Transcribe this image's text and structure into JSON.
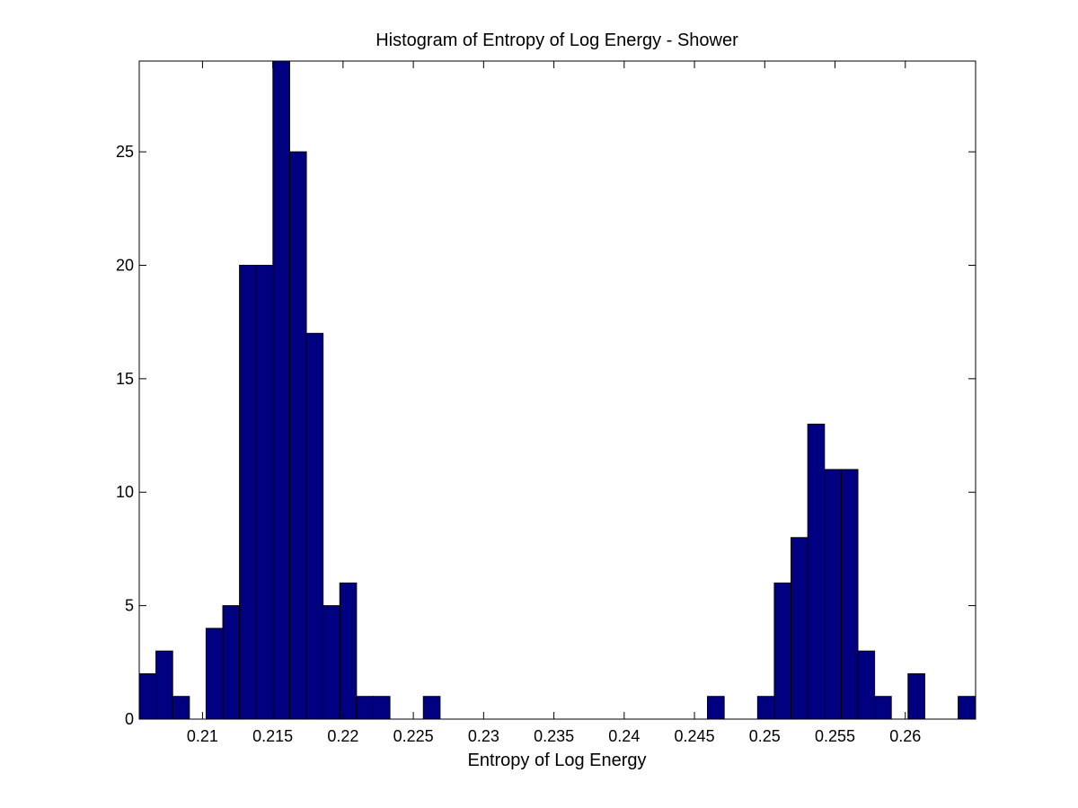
{
  "chart_data": {
    "type": "bar",
    "title": "Histogram of Entropy of Log Energy - Shower",
    "xlabel": "Entropy of Log Energy",
    "ylabel": "",
    "xlim": [
      0.2055,
      0.265
    ],
    "ylim": [
      0,
      29
    ],
    "bin_width": 0.001189,
    "bin_start": 0.2055,
    "values": [
      2,
      3,
      1,
      0,
      4,
      5,
      20,
      20,
      29,
      25,
      17,
      5,
      6,
      1,
      1,
      0,
      0,
      1,
      0,
      0,
      0,
      0,
      0,
      0,
      0,
      0,
      0,
      0,
      0,
      0,
      0,
      0,
      0,
      0,
      1,
      0,
      0,
      1,
      6,
      8,
      13,
      11,
      11,
      3,
      1,
      0,
      2,
      0,
      0,
      1
    ],
    "x_ticks": [
      "0.21",
      "0.215",
      "0.22",
      "0.225",
      "0.23",
      "0.235",
      "0.24",
      "0.245",
      "0.25",
      "0.255",
      "0.26"
    ],
    "y_ticks": [
      "0",
      "5",
      "10",
      "15",
      "20",
      "25"
    ],
    "grid": false,
    "colors": {
      "bar_fill": "#000080",
      "bar_edge": "#000000",
      "axes": "#000000"
    }
  }
}
